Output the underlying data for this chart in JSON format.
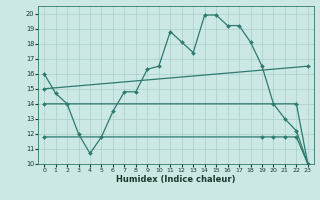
{
  "xlabel": "Humidex (Indice chaleur)",
  "background_color": "#cce8e4",
  "grid_color": "#aacfcb",
  "line_color": "#2d7a6e",
  "xlim": [
    -0.5,
    23.5
  ],
  "ylim": [
    10,
    20.5
  ],
  "xticks": [
    0,
    1,
    2,
    3,
    4,
    5,
    6,
    7,
    8,
    9,
    10,
    11,
    12,
    13,
    14,
    15,
    16,
    17,
    18,
    19,
    20,
    21,
    22,
    23
  ],
  "yticks": [
    10,
    11,
    12,
    13,
    14,
    15,
    16,
    17,
    18,
    19,
    20
  ],
  "series": [
    {
      "x": [
        0,
        1,
        2,
        3,
        4,
        5,
        6,
        7,
        8,
        9,
        10,
        11,
        12,
        13,
        14,
        15,
        16,
        17,
        18,
        19,
        20,
        21,
        22,
        23
      ],
      "y": [
        16.0,
        14.7,
        14.0,
        12.0,
        10.7,
        11.8,
        13.5,
        14.8,
        14.8,
        16.3,
        16.5,
        18.8,
        18.1,
        17.4,
        19.9,
        19.9,
        19.2,
        19.2,
        18.1,
        16.5,
        14.0,
        13.0,
        12.2,
        10.0
      ]
    },
    {
      "x": [
        0,
        23
      ],
      "y": [
        15.0,
        16.5
      ]
    },
    {
      "x": [
        0,
        22,
        23
      ],
      "y": [
        14.0,
        14.0,
        10.0
      ]
    },
    {
      "x": [
        0,
        19,
        20,
        21,
        22,
        23
      ],
      "y": [
        11.8,
        11.8,
        11.8,
        11.8,
        11.8,
        10.0
      ]
    }
  ]
}
